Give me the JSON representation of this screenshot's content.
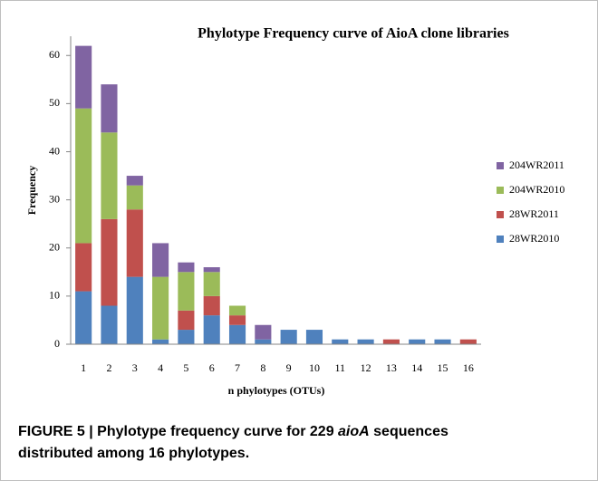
{
  "chart_data": {
    "type": "stacked_bar",
    "title": "Phylotype Frequency curve of AioA clone libraries",
    "xlabel": "n phylotypes (OTUs)",
    "ylabel": "Frequency",
    "categories": [
      "1",
      "2",
      "3",
      "4",
      "5",
      "6",
      "7",
      "8",
      "9",
      "10",
      "11",
      "12",
      "13",
      "14",
      "15",
      "16"
    ],
    "series": [
      {
        "name": "28WR2010",
        "color": "#4f81bd",
        "values": [
          11,
          8,
          14,
          1,
          3,
          6,
          4,
          1,
          3,
          3,
          1,
          1,
          0,
          1,
          1,
          0
        ]
      },
      {
        "name": "28WR2011",
        "color": "#c0504d",
        "values": [
          10,
          18,
          14,
          0,
          4,
          4,
          2,
          0,
          0,
          0,
          0,
          0,
          1,
          0,
          0,
          1
        ]
      },
      {
        "name": "204WR2010",
        "color": "#9bbb59",
        "values": [
          28,
          18,
          5,
          13,
          8,
          5,
          2,
          0,
          0,
          0,
          0,
          0,
          0,
          0,
          0,
          0
        ]
      },
      {
        "name": "204WR2011",
        "color": "#8064a2",
        "values": [
          13,
          10,
          2,
          7,
          2,
          1,
          0,
          3,
          0,
          0,
          0,
          0,
          0,
          0,
          0,
          0
        ]
      }
    ],
    "ylim": [
      0,
      64
    ],
    "yticks": [
      0,
      10,
      20,
      30,
      40,
      50,
      60
    ],
    "legend": "right"
  },
  "caption": [
    "FIGURE 5 | Phylotype frequency curve for 229 ",
    "aioA",
    " sequences distributed among 16 phylotypes."
  ]
}
